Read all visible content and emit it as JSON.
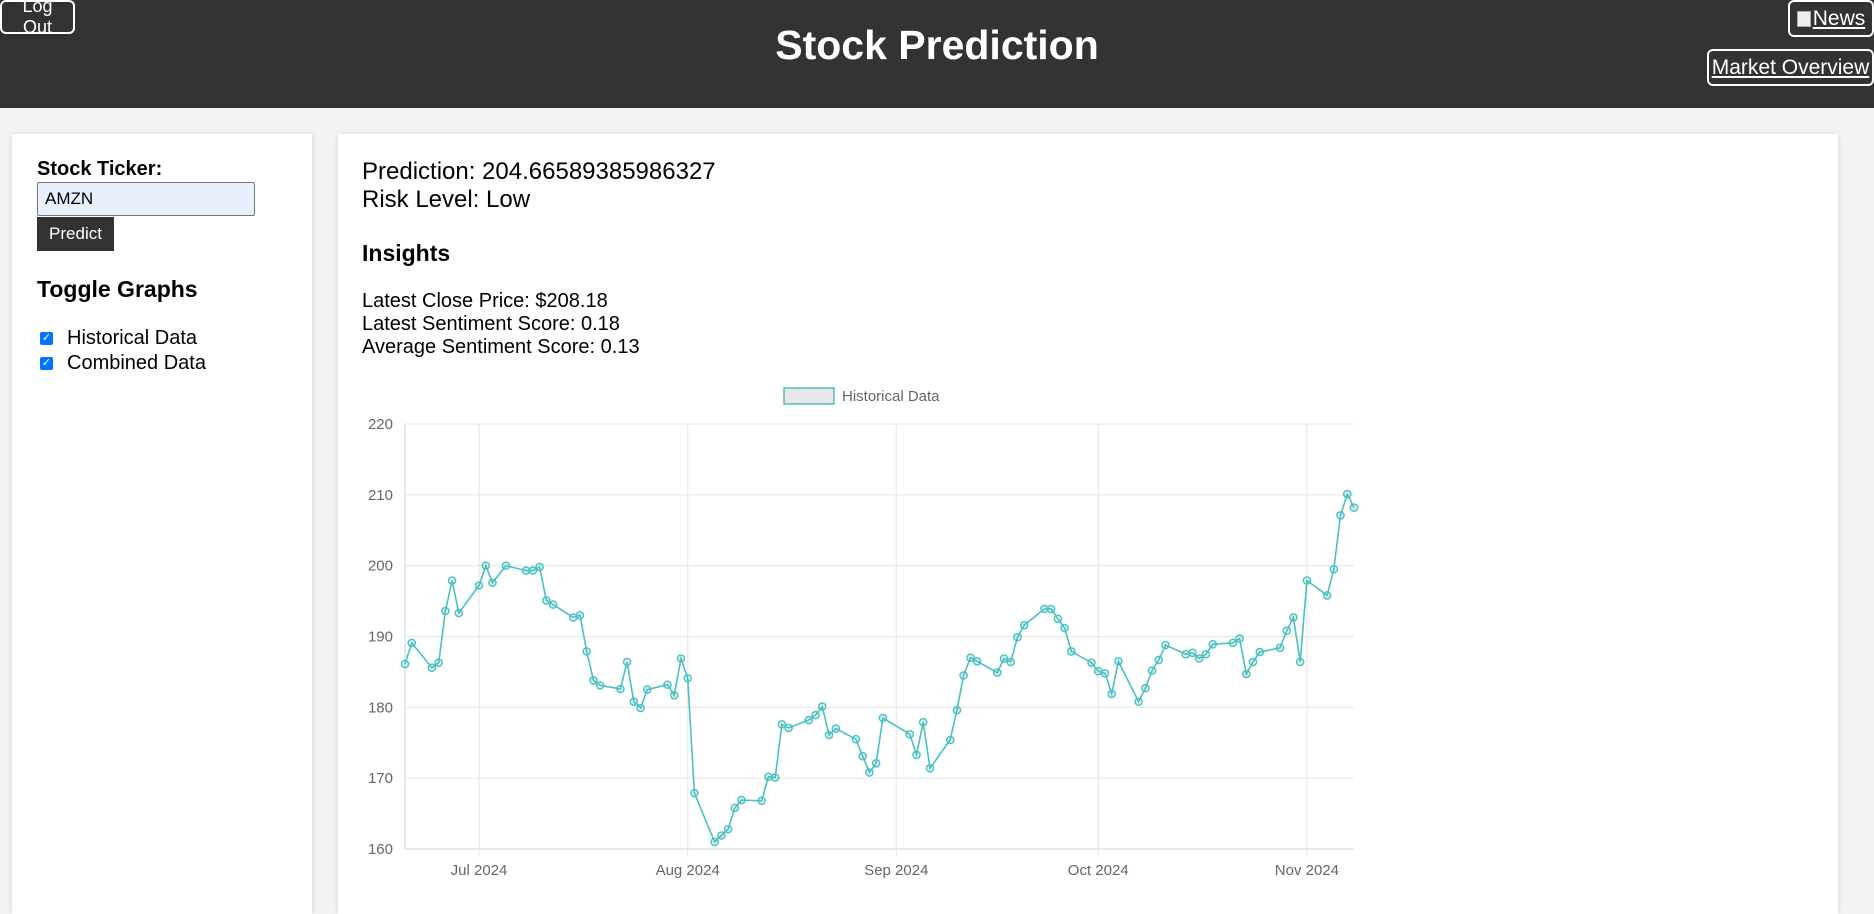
{
  "header": {
    "title": "Stock Prediction",
    "logout_label": "Log Out",
    "news_label": "News",
    "market_overview_label": "Market Overview"
  },
  "sidebar": {
    "ticker_label": "Stock Ticker:",
    "ticker_value": "AMZN",
    "predict_label": "Predict",
    "toggle_title": "Toggle Graphs",
    "toggles": [
      {
        "label": "Historical Data",
        "checked": true
      },
      {
        "label": "Combined Data",
        "checked": true
      }
    ]
  },
  "results": {
    "prediction": "Prediction: 204.66589385986327",
    "risk": "Risk Level: Low",
    "insights_title": "Insights",
    "insights": [
      "Latest Close Price: $208.18",
      "Latest Sentiment Score: 0.18",
      "Average Sentiment Score: 0.13"
    ]
  },
  "colors": {
    "header_bg": "#333333",
    "line": "#4bc0c0",
    "checkbox": "#0075ff"
  },
  "chart_data": {
    "type": "line",
    "legend": [
      "Historical Data"
    ],
    "legend_position": "top",
    "grid": true,
    "ylim": [
      160,
      220
    ],
    "y_ticks": [
      "220",
      "210",
      "200",
      "190",
      "180",
      "170",
      "160"
    ],
    "x_ticks": [
      {
        "label": "Jul 2024",
        "date": "2024-07-01"
      },
      {
        "label": "Aug 2024",
        "date": "2024-08-01"
      },
      {
        "label": "Sep 2024",
        "date": "2024-09-01"
      },
      {
        "label": "Oct 2024",
        "date": "2024-10-01"
      },
      {
        "label": "Nov 2024",
        "date": "2024-11-01"
      }
    ],
    "series": [
      {
        "name": "Historical Data",
        "points": [
          [
            "2024-06-20",
            186.1
          ],
          [
            "2024-06-21",
            189.1
          ],
          [
            "2024-06-24",
            185.6
          ],
          [
            "2024-06-25",
            186.3
          ],
          [
            "2024-06-26",
            193.6
          ],
          [
            "2024-06-27",
            197.9
          ],
          [
            "2024-06-28",
            193.3
          ],
          [
            "2024-07-01",
            197.2
          ],
          [
            "2024-07-02",
            200.0
          ],
          [
            "2024-07-03",
            197.6
          ],
          [
            "2024-07-05",
            200.0
          ],
          [
            "2024-07-08",
            199.3
          ],
          [
            "2024-07-09",
            199.3
          ],
          [
            "2024-07-10",
            199.8
          ],
          [
            "2024-07-11",
            195.1
          ],
          [
            "2024-07-12",
            194.5
          ],
          [
            "2024-07-15",
            192.7
          ],
          [
            "2024-07-16",
            193.0
          ],
          [
            "2024-07-17",
            187.9
          ],
          [
            "2024-07-18",
            183.8
          ],
          [
            "2024-07-19",
            183.1
          ],
          [
            "2024-07-22",
            182.6
          ],
          [
            "2024-07-23",
            186.4
          ],
          [
            "2024-07-24",
            180.8
          ],
          [
            "2024-07-25",
            179.9
          ],
          [
            "2024-07-26",
            182.5
          ],
          [
            "2024-07-29",
            183.2
          ],
          [
            "2024-07-30",
            181.7
          ],
          [
            "2024-07-31",
            186.9
          ],
          [
            "2024-08-01",
            184.1
          ],
          [
            "2024-08-02",
            167.9
          ],
          [
            "2024-08-05",
            161.0
          ],
          [
            "2024-08-06",
            161.9
          ],
          [
            "2024-08-07",
            162.8
          ],
          [
            "2024-08-08",
            165.8
          ],
          [
            "2024-08-09",
            166.9
          ],
          [
            "2024-08-12",
            166.8
          ],
          [
            "2024-08-13",
            170.2
          ],
          [
            "2024-08-14",
            170.1
          ],
          [
            "2024-08-15",
            177.6
          ],
          [
            "2024-08-16",
            177.1
          ],
          [
            "2024-08-19",
            178.2
          ],
          [
            "2024-08-20",
            178.9
          ],
          [
            "2024-08-21",
            180.1
          ],
          [
            "2024-08-22",
            176.1
          ],
          [
            "2024-08-23",
            177.0
          ],
          [
            "2024-08-26",
            175.5
          ],
          [
            "2024-08-27",
            173.1
          ],
          [
            "2024-08-28",
            170.8
          ],
          [
            "2024-08-29",
            172.1
          ],
          [
            "2024-08-30",
            178.5
          ],
          [
            "2024-09-03",
            176.2
          ],
          [
            "2024-09-04",
            173.3
          ],
          [
            "2024-09-05",
            177.9
          ],
          [
            "2024-09-06",
            171.4
          ],
          [
            "2024-09-09",
            175.4
          ],
          [
            "2024-09-10",
            179.6
          ],
          [
            "2024-09-11",
            184.5
          ],
          [
            "2024-09-12",
            187.0
          ],
          [
            "2024-09-13",
            186.5
          ],
          [
            "2024-09-16",
            184.9
          ],
          [
            "2024-09-17",
            186.9
          ],
          [
            "2024-09-18",
            186.4
          ],
          [
            "2024-09-19",
            189.9
          ],
          [
            "2024-09-20",
            191.6
          ],
          [
            "2024-09-23",
            193.9
          ],
          [
            "2024-09-24",
            193.9
          ],
          [
            "2024-09-25",
            192.5
          ],
          [
            "2024-09-26",
            191.2
          ],
          [
            "2024-09-27",
            187.9
          ],
          [
            "2024-09-30",
            186.3
          ],
          [
            "2024-10-01",
            185.1
          ],
          [
            "2024-10-02",
            184.8
          ],
          [
            "2024-10-03",
            181.9
          ],
          [
            "2024-10-04",
            186.5
          ],
          [
            "2024-10-07",
            180.8
          ],
          [
            "2024-10-08",
            182.7
          ],
          [
            "2024-10-09",
            185.2
          ],
          [
            "2024-10-10",
            186.7
          ],
          [
            "2024-10-11",
            188.8
          ],
          [
            "2024-10-14",
            187.5
          ],
          [
            "2024-10-15",
            187.7
          ],
          [
            "2024-10-16",
            186.9
          ],
          [
            "2024-10-17",
            187.5
          ],
          [
            "2024-10-18",
            188.9
          ],
          [
            "2024-10-21",
            189.1
          ],
          [
            "2024-10-22",
            189.7
          ],
          [
            "2024-10-23",
            184.7
          ],
          [
            "2024-10-24",
            186.4
          ],
          [
            "2024-10-25",
            187.8
          ],
          [
            "2024-10-28",
            188.4
          ],
          [
            "2024-10-29",
            190.8
          ],
          [
            "2024-10-30",
            192.7
          ],
          [
            "2024-10-31",
            186.4
          ],
          [
            "2024-11-01",
            197.9
          ],
          [
            "2024-11-04",
            195.8
          ],
          [
            "2024-11-05",
            199.5
          ],
          [
            "2024-11-06",
            207.1
          ],
          [
            "2024-11-07",
            210.1
          ],
          [
            "2024-11-08",
            208.2
          ]
        ]
      }
    ]
  }
}
